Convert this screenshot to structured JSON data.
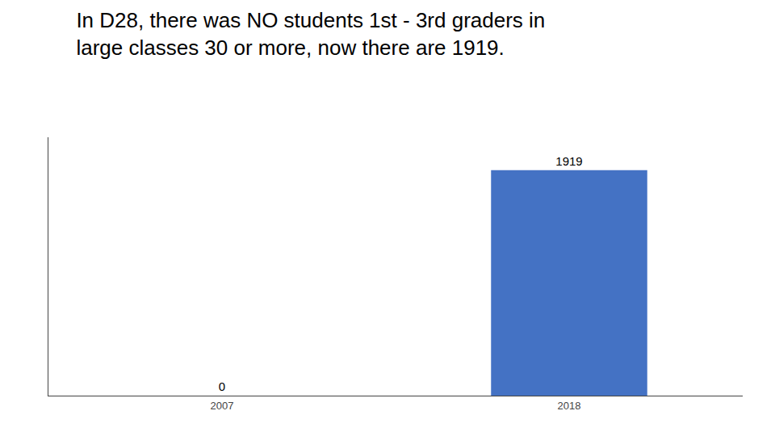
{
  "chart_data": {
    "type": "bar",
    "title": "In D28, there was NO students 1st - 3rd graders in\nlarge classes 30 or more, now there are 1919.",
    "categories": [
      "2007",
      "2018"
    ],
    "values": [
      0,
      1919
    ],
    "color": "#4472C4",
    "ylim": [
      0,
      2200
    ],
    "yticks": [],
    "grid": false,
    "data_labels": true,
    "tick_labels": "x"
  }
}
